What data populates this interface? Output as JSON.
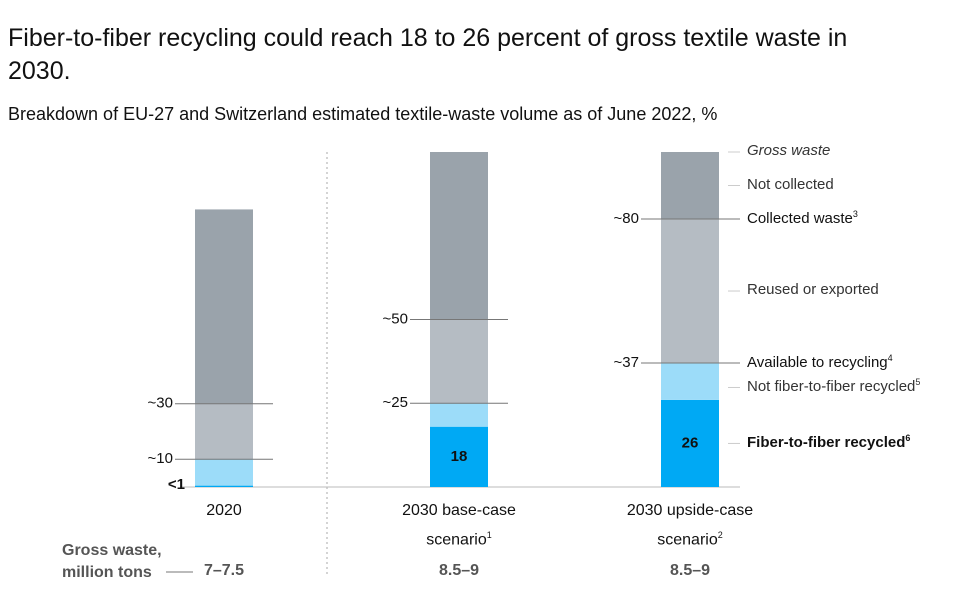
{
  "chart_data": {
    "type": "stacked_bar",
    "title": "Fiber-to-fiber recycling could reach 18 to 26 percent of gross textile waste in 2030.",
    "subtitle": "Breakdown of EU-27 and Switzerland estimated textile-waste volume as of June 2022,",
    "unit": "%",
    "categories": [
      {
        "name": "2020"
      },
      {
        "name": "2030 base-case scenario",
        "note": "1"
      },
      {
        "name": "2030 upside-case scenario",
        "note": "2"
      }
    ],
    "series": [
      {
        "name": "Fiber-to-fiber recycled",
        "note": "6",
        "color": "#00a9f4",
        "values": [
          0.5,
          18,
          26
        ],
        "value_labels": [
          "<1",
          "18",
          "26"
        ]
      },
      {
        "name": "Not fiber-to-fiber recycled",
        "note": "5",
        "color": "#9cdcf9",
        "values": [
          9.5,
          7,
          11
        ]
      },
      {
        "name": "Reused or exported",
        "color": "#b5bcc3",
        "values": [
          20,
          25,
          43
        ]
      },
      {
        "name": "Not collected",
        "color": "#9aa3ab",
        "values": [
          70,
          50,
          20
        ]
      }
    ],
    "levels": [
      {
        "name": "Collected waste",
        "note": "3",
        "values": [
          {
            "value": 30,
            "label": "~30"
          },
          {
            "value": 50,
            "label": "~50"
          },
          {
            "value": 80,
            "label": "~80"
          }
        ]
      },
      {
        "name": "Available to recycling",
        "note": "4",
        "values": [
          {
            "value": 10,
            "label": "~10"
          },
          {
            "value": 25,
            "label": "~25"
          },
          {
            "value": 37,
            "label": "~37"
          }
        ]
      }
    ],
    "total_label": "Gross waste",
    "gross_waste": {
      "label": "Gross waste, million tons",
      "values": [
        {
          "low": 7,
          "high": 7.5,
          "label": "7–7.5"
        },
        {
          "low": 8.5,
          "high": 9,
          "label": "8.5–9"
        },
        {
          "low": 8.5,
          "high": 9,
          "label": "8.5–9"
        }
      ]
    },
    "ylim": [
      0,
      100
    ]
  }
}
